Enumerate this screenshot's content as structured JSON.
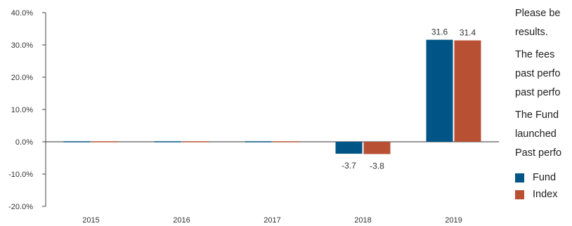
{
  "chart_data": {
    "type": "bar",
    "categories": [
      "2015",
      "2016",
      "2017",
      "2018",
      "2019"
    ],
    "series": [
      {
        "name": "Fund",
        "values": [
          0,
          0,
          0,
          -3.7,
          31.6
        ],
        "color": "#005587",
        "labels": [
          "",
          "",
          "",
          "-3.7",
          "31.6"
        ]
      },
      {
        "name": "Index",
        "values": [
          0,
          0,
          0,
          -3.8,
          31.4
        ],
        "color": "#b85033",
        "labels": [
          "",
          "",
          "",
          "-3.8",
          "31.4"
        ]
      }
    ],
    "ylim": [
      -20,
      40
    ],
    "yticks": [
      -20,
      -10,
      0,
      10,
      20,
      30,
      40
    ],
    "ytick_labels": [
      "-20.0%",
      "-10.0%",
      "0.0%",
      "10.0%",
      "20.0%",
      "30.0%",
      "40.0%"
    ],
    "grid": false,
    "legend_position": "right"
  },
  "side_text": {
    "lines": [
      "Please be",
      "results.",
      "The fees",
      "past perfo",
      "past perfo",
      "The  Fund",
      "launched",
      "Past perfo"
    ]
  },
  "legend": {
    "fund_label": "Fund",
    "index_label": "Index",
    "fund_color": "#005587",
    "index_color": "#b85033"
  }
}
